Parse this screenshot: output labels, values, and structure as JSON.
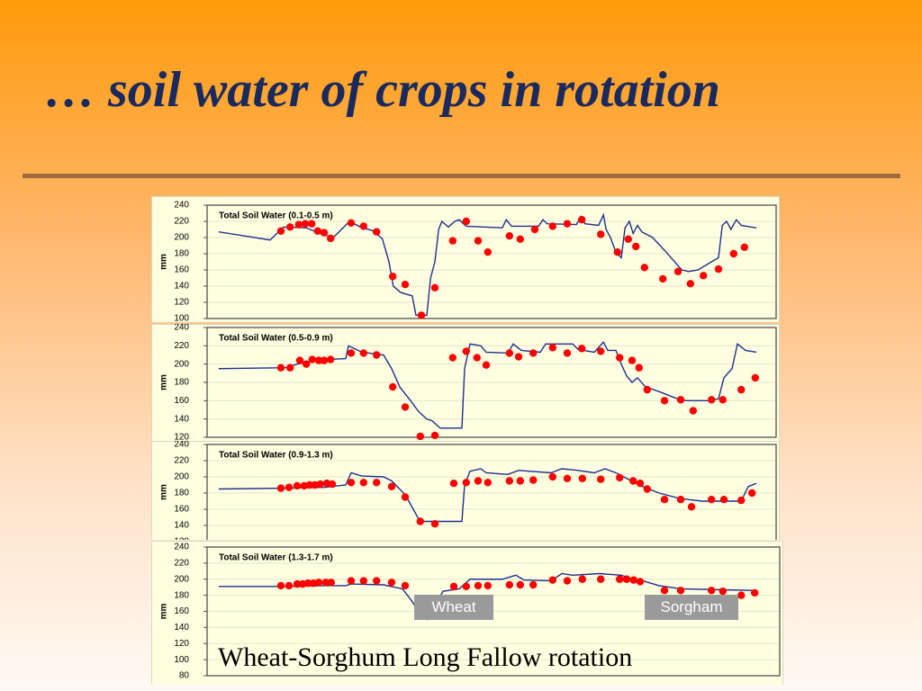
{
  "title": "… soil water of crops in rotation",
  "caption": "Wheat-Sorghum Long Fallow rotation",
  "labels": [
    "Wheat",
    "Sorgham"
  ],
  "chart_data": [
    {
      "type": "line",
      "title": "Total Soil Water (0.1-0.5 m)",
      "ylabel": "mm",
      "xlim": [
        0,
        100
      ],
      "ylim": [
        100,
        240
      ],
      "yticks": [
        100,
        120,
        140,
        160,
        180,
        200,
        220,
        240
      ],
      "grid": true,
      "series": [
        {
          "type": "line",
          "color": "#1f2f8f",
          "x": [
            0.5,
            10,
            12.5,
            16.7,
            19.2,
            21.7,
            24.7,
            26.7,
            29.2,
            30.8,
            32,
            32.8,
            34.2,
            36.3,
            37,
            39,
            39.7,
            40.5,
            41.2,
            41.8,
            43,
            44.2,
            45,
            46.3,
            53,
            53.7,
            54.7,
            59.7,
            60.5,
            61.3,
            66.7,
            67.5,
            68.3,
            70.8,
            71.7,
            72.2,
            73,
            74,
            75,
            75.7,
            76.5,
            77.2,
            78,
            78.8,
            80.8,
            83.3,
            86.2,
            87.5,
            89.2,
            91.7,
            93,
            93.7,
            94.5,
            95.3,
            96.3,
            97.2,
            99,
            100
          ],
          "values": [
            207,
            197,
            213,
            212,
            205,
            200,
            220,
            213,
            208,
            198,
            170,
            140,
            132,
            128,
            104,
            104,
            150,
            170,
            210,
            220,
            213,
            220,
            222,
            214,
            212,
            222,
            214,
            214,
            222,
            217,
            216,
            226,
            217,
            215,
            228,
            210,
            200,
            182,
            175,
            212,
            220,
            205,
            215,
            207,
            200,
            182,
            160,
            158,
            160,
            170,
            175,
            215,
            220,
            210,
            222,
            215,
            213,
            212
          ]
        },
        {
          "type": "scatter",
          "color": "#ff0000",
          "x": [
            12,
            13.7,
            15.3,
            16.5,
            17.7,
            18.8,
            20,
            21.2,
            25,
            27.3,
            29.7,
            32.7,
            35,
            38,
            40.5,
            43.8,
            46.3,
            48.5,
            50.3,
            54.3,
            56.3,
            59,
            62.3,
            65,
            67.7,
            71.2,
            74.3,
            76.3,
            77.7,
            79.3,
            82.7,
            85.5,
            87.8,
            90.2,
            93,
            95.8,
            97.8
          ],
          "values": [
            208,
            213,
            216,
            217,
            217,
            208,
            206,
            199,
            218,
            214,
            207,
            152,
            142,
            104,
            138,
            196,
            220,
            196,
            182,
            202,
            198,
            210,
            214,
            217,
            222,
            204,
            182,
            198,
            189,
            163,
            149,
            158,
            143,
            153,
            161,
            180,
            188
          ]
        }
      ]
    },
    {
      "type": "line",
      "title": "Total Soil Water (0.5-0.9 m)",
      "ylabel": "mm",
      "xlim": [
        0,
        100
      ],
      "ylim": [
        120,
        240
      ],
      "yticks": [
        120,
        140,
        160,
        180,
        200,
        220,
        240
      ],
      "grid": true,
      "series": [
        {
          "type": "line",
          "color": "#1f2f8f",
          "x": [
            0.5,
            13,
            15,
            20,
            24,
            24.5,
            27,
            31,
            32.5,
            34,
            36,
            37.5,
            39,
            40,
            41.5,
            44,
            45.5,
            46,
            47,
            49,
            50,
            54,
            55,
            56.5,
            60,
            61,
            64,
            66,
            67,
            70,
            71.7,
            72.5,
            74,
            75,
            76,
            77,
            78,
            79.5,
            82,
            85,
            87,
            91,
            93,
            94,
            95.5,
            96.5,
            98,
            100
          ],
          "values": [
            195,
            196,
            200,
            205,
            206,
            220,
            213,
            210,
            195,
            175,
            160,
            148,
            140,
            138,
            130,
            130,
            130,
            195,
            222,
            220,
            213,
            212,
            222,
            215,
            213,
            222,
            222,
            222,
            216,
            213,
            224,
            215,
            215,
            200,
            187,
            180,
            185,
            175,
            170,
            163,
            160,
            160,
            162,
            185,
            195,
            222,
            215,
            213
          ]
        },
        {
          "type": "scatter",
          "color": "#ff0000",
          "x": [
            12,
            13.7,
            15.5,
            16.7,
            17.8,
            19,
            20,
            21.2,
            25,
            27.3,
            29.7,
            32.7,
            35,
            37.8,
            40.5,
            43.8,
            46.3,
            48.3,
            50,
            54.3,
            56,
            58.7,
            62.3,
            65,
            67.7,
            71.2,
            74.7,
            77,
            78.3,
            79.8,
            83,
            86,
            88.3,
            91.7,
            93.8,
            97.2,
            99.8
          ],
          "values": [
            196,
            196,
            204,
            200,
            205,
            204,
            204,
            205,
            212,
            212,
            210,
            175,
            153,
            121,
            122,
            207,
            214,
            207,
            199,
            212,
            208,
            212,
            218,
            212,
            217,
            214,
            207,
            204,
            196,
            172,
            160,
            161,
            149,
            161,
            161,
            172,
            185
          ]
        }
      ]
    },
    {
      "type": "line",
      "title": "Total Soil Water (0.9-1.3 m)",
      "ylabel": "mm",
      "xlim": [
        0,
        100
      ],
      "ylim": [
        120,
        240
      ],
      "yticks": [
        120,
        140,
        160,
        180,
        200,
        220,
        240
      ],
      "grid": true,
      "series": [
        {
          "type": "line",
          "color": "#1f2f8f",
          "x": [
            0.5,
            13,
            20,
            24,
            25,
            27,
            31,
            32.5,
            35,
            36.5,
            37.5,
            38.5,
            45.5,
            46,
            47,
            49,
            50,
            54,
            56,
            62,
            64,
            67,
            70,
            72,
            74,
            76,
            79,
            82,
            86,
            90,
            96,
            97.2,
            98.5,
            100
          ],
          "values": [
            185,
            186,
            187,
            190,
            205,
            201,
            200,
            195,
            178,
            160,
            148,
            145,
            145,
            190,
            207,
            210,
            205,
            203,
            208,
            205,
            210,
            208,
            205,
            210,
            205,
            198,
            188,
            180,
            173,
            170,
            170,
            170,
            188,
            192
          ]
        },
        {
          "type": "scatter",
          "color": "#ff0000",
          "x": [
            12,
            13.5,
            15,
            16.3,
            17.3,
            18.3,
            19.3,
            20.5,
            21.5,
            25,
            27.3,
            29.7,
            32.5,
            35,
            37.8,
            40.5,
            44,
            46.3,
            48.5,
            50.3,
            54.3,
            56.3,
            58.7,
            62.3,
            65,
            67.8,
            71.2,
            74.7,
            77.2,
            78.5,
            79.8,
            83,
            86,
            88,
            91.7,
            94,
            97.2,
            99.2
          ],
          "values": [
            186,
            187,
            189,
            189,
            190,
            190,
            191,
            192,
            191,
            193,
            193,
            193,
            188,
            175,
            145,
            142,
            192,
            193,
            195,
            193,
            195,
            195,
            196,
            200,
            198,
            198,
            197,
            199,
            195,
            192,
            185,
            172,
            172,
            163,
            172,
            172,
            171,
            180
          ]
        }
      ]
    },
    {
      "type": "line",
      "title": "Total Soil Water (1.3-1.7 m)",
      "ylabel": "mm",
      "xlim": [
        0,
        100
      ],
      "ylim": [
        80,
        240
      ],
      "yticks": [
        80,
        100,
        120,
        140,
        160,
        180,
        200,
        220,
        240
      ],
      "grid": true,
      "series": [
        {
          "type": "line",
          "color": "#1f2f8f",
          "x": [
            0.5,
            13,
            20,
            24,
            25,
            31,
            34.5,
            36,
            37.5,
            39,
            42,
            45,
            47,
            53,
            55.5,
            57,
            62,
            64,
            66,
            71,
            75,
            77,
            79,
            82,
            86,
            93,
            100
          ],
          "values": [
            191,
            191,
            192,
            192,
            194,
            193,
            188,
            175,
            160,
            150,
            185,
            188,
            200,
            200,
            205,
            199,
            198,
            207,
            205,
            207,
            205,
            200,
            198,
            192,
            188,
            187,
            186
          ]
        },
        {
          "type": "scatter",
          "color": "#ff0000",
          "x": [
            12,
            13.5,
            15,
            16,
            17,
            18,
            19,
            20.3,
            21.3,
            25,
            27.3,
            29.7,
            32.5,
            35,
            44,
            46.3,
            48.5,
            50.3,
            54.3,
            56.3,
            58.7,
            62.3,
            65,
            67.8,
            71.2,
            74.7,
            76,
            77.3,
            78.5,
            83,
            86,
            91.7,
            93.8,
            97.2,
            99.7
          ],
          "values": [
            192,
            192,
            194,
            194,
            195,
            195,
            196,
            196,
            196,
            198,
            198,
            198,
            196,
            192,
            191,
            191,
            192,
            192,
            193,
            193,
            193,
            199,
            198,
            200,
            200,
            200,
            200,
            199,
            197,
            186,
            186,
            186,
            185,
            180,
            183
          ]
        }
      ]
    }
  ]
}
